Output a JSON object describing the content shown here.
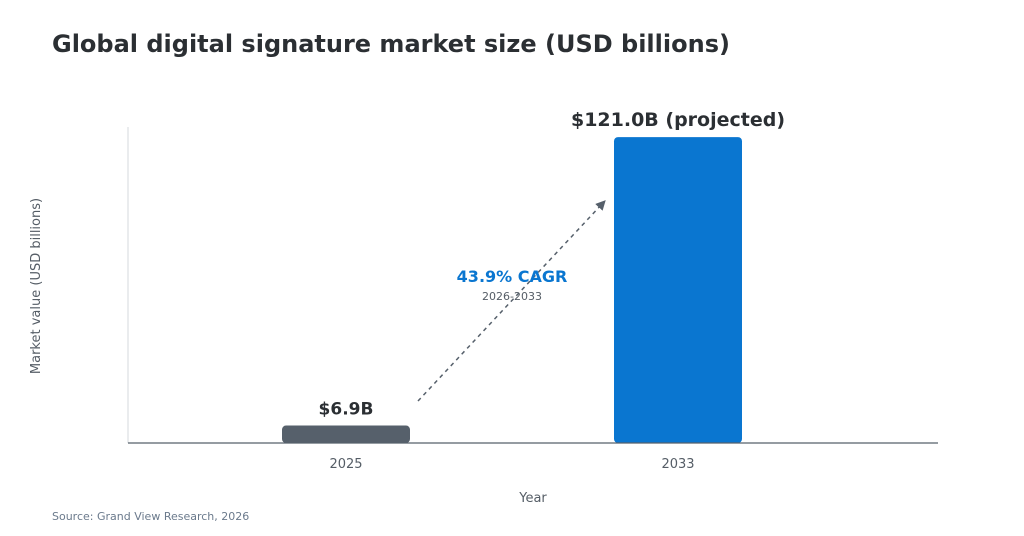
{
  "header": {
    "title": "Global digital signature market size (USD billions)"
  },
  "footer": {
    "source": "Source: Grand View Research, 2026"
  },
  "colors": {
    "bar_2025": "#56606b",
    "bar_2033": "#0a76d0",
    "cagr": "#0a76d0",
    "axis": "#56606b",
    "text": "#2b2f33"
  },
  "chart_data": {
    "type": "bar",
    "title": "Global digital signature market size (USD billions)",
    "xlabel": "Year",
    "ylabel": "Market value (USD billions)",
    "categories": [
      "2025",
      "2033"
    ],
    "values": [
      6.9,
      121.0
    ],
    "data_labels": [
      "$6.9B",
      "$121.0B (projected)"
    ],
    "ylim": [
      0,
      125
    ],
    "grid": false,
    "annotation": {
      "text": "43.9% CAGR",
      "subtext": "2026-2033",
      "style": "dashed arrow from 2025 bar to 2033 bar"
    }
  }
}
